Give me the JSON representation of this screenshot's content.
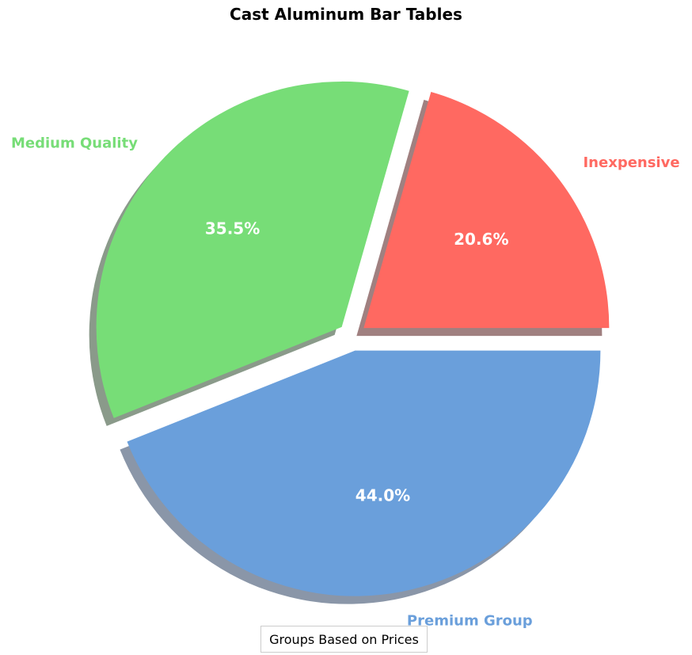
{
  "chart_data": {
    "type": "pie",
    "title": "Cast Aluminum Bar Tables",
    "categories": [
      "Inexpensive",
      "Medium Quality",
      "Premium Group"
    ],
    "values": [
      20.6,
      35.5,
      44.0
    ],
    "value_labels": [
      "20.6%",
      "35.5%",
      "44.0%"
    ],
    "colors": [
      "#ff6961",
      "#77dd77",
      "#6a9fdb"
    ],
    "explode": true,
    "shadow": true,
    "start_angle": 0,
    "legend": {
      "title": "Groups Based on Prices",
      "position": "lower center"
    }
  },
  "title": "Cast Aluminum Bar Tables",
  "legend_title": "Groups Based on Prices",
  "slices": [
    {
      "label": "Inexpensive",
      "pct": "20.6%",
      "color": "#ff6961"
    },
    {
      "label": "Medium Quality",
      "pct": "35.5%",
      "color": "#77dd77"
    },
    {
      "label": "Premium Group",
      "pct": "44.0%",
      "color": "#6a9fdb"
    }
  ]
}
